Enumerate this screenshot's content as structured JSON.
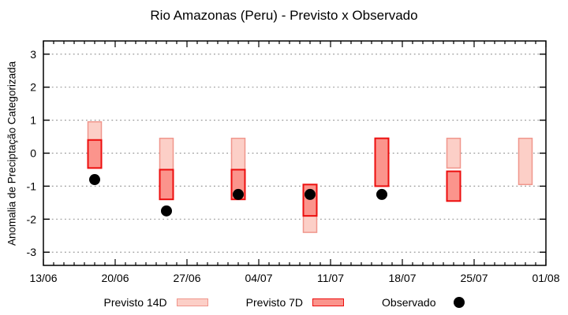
{
  "chart_data": {
    "type": "bar",
    "title": "Rio Amazonas (Peru) - Previsto x Observado",
    "ylabel": "Anomalia de Preciptação Categorizada",
    "xlabel": "",
    "ylim": [
      -3.4,
      3.4
    ],
    "y_ticks": [
      3,
      2,
      1,
      0,
      -1,
      -2,
      -3
    ],
    "x_tick_labels": [
      "13/06",
      "20/06",
      "27/06",
      "04/07",
      "11/07",
      "18/07",
      "25/07",
      "01/08"
    ],
    "x_minor_tick_interval_days": 1,
    "x_major_tick_interval_days": 7,
    "x_range_days": 49,
    "grid": "horizontal-dotted",
    "legend_position": "bottom",
    "legend": [
      {
        "label": "Previsto 14D",
        "swatch": "light-pink-box"
      },
      {
        "label": "Previsto 7D",
        "swatch": "red-box"
      },
      {
        "label": "Observado",
        "swatch": "black-dot"
      }
    ],
    "series_meta": [
      {
        "name": "Previsto 14D",
        "type": "range-bar"
      },
      {
        "name": "Previsto 7D",
        "type": "range-bar"
      },
      {
        "name": "Observado",
        "type": "point"
      }
    ],
    "clusters": [
      {
        "date": "18/06",
        "day": 5,
        "previsto_14d": [
          -0.45,
          0.95
        ],
        "previsto_7d": [
          -0.45,
          0.4
        ],
        "observado": -0.8
      },
      {
        "date": "25/06",
        "day": 12,
        "previsto_14d": [
          -0.5,
          0.45
        ],
        "previsto_7d": [
          -1.4,
          -0.5
        ],
        "observado": -1.75
      },
      {
        "date": "02/07",
        "day": 19,
        "previsto_14d": [
          -0.5,
          0.45
        ],
        "previsto_7d": [
          -1.4,
          -0.5
        ],
        "observado": -1.25
      },
      {
        "date": "09/07",
        "day": 26,
        "previsto_14d": [
          -2.4,
          -0.95
        ],
        "previsto_7d": [
          -1.9,
          -0.95
        ],
        "observado": -1.25
      },
      {
        "date": "16/07",
        "day": 33,
        "previsto_14d": null,
        "previsto_7d": [
          -1.0,
          0.45
        ],
        "observado": -1.25
      },
      {
        "date": "23/07",
        "day": 40,
        "previsto_14d": [
          -0.45,
          0.45
        ],
        "previsto_7d": [
          -1.45,
          -0.55
        ],
        "observado": null
      },
      {
        "date": "30/07",
        "day": 47,
        "previsto_14d": [
          -0.95,
          0.45
        ],
        "previsto_7d": null,
        "observado": null
      }
    ],
    "colors": {
      "previsto_14d_fill": "#fccfc7",
      "previsto_14d_border": "#f0968c",
      "previsto_7d_fill": "#fb948c",
      "previsto_7d_border": "#ec0e0e",
      "observado": "#000000",
      "grid": "#999999",
      "axis": "#000000",
      "background": "#ffffff"
    }
  }
}
